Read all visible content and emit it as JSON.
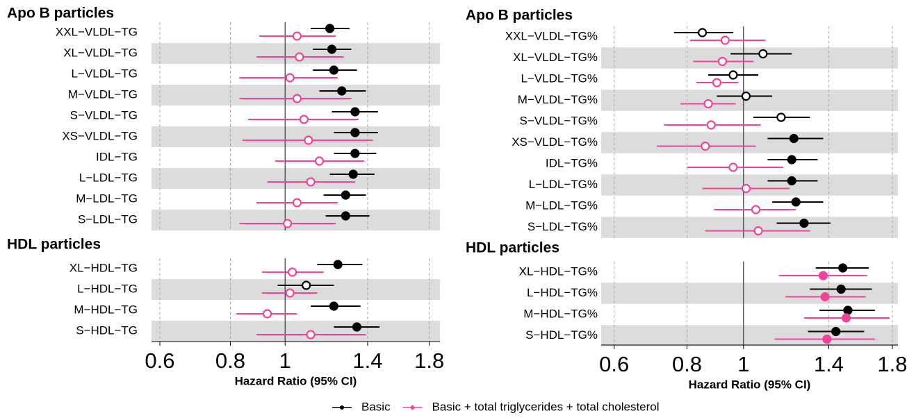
{
  "chart_data": [
    {
      "type": "forest",
      "xlabel": "Hazard Ratio (95% CI)",
      "log_x": true,
      "xlim": [
        0.58,
        1.88
      ],
      "xticks": [
        0.6,
        0.8,
        1,
        1.4,
        1.8
      ],
      "grid": true,
      "sections": [
        {
          "title": "Apo B particles",
          "categories": [
            "XXL−VLDL−TG",
            "XL−VLDL−TG",
            "L−VLDL−TG",
            "M−VLDL−TG",
            "S−VLDL−TG",
            "XS−VLDL−TG",
            "IDL−TG",
            "L−LDL−TG",
            "M−LDL−TG",
            "S−LDL−TG"
          ]
        },
        {
          "title": "HDL particles",
          "categories": [
            "XL−HDL−TG",
            "L−HDL−TG",
            "M−HDL−TG",
            "S−HDL−TG"
          ]
        }
      ],
      "series": [
        {
          "name": "Basic",
          "color": "#000000",
          "values": [
            1.2,
            1.21,
            1.22,
            1.26,
            1.33,
            1.33,
            1.33,
            1.32,
            1.28,
            1.28,
            1.24,
            1.09,
            1.22,
            1.34
          ],
          "lower": [
            1.11,
            1.12,
            1.12,
            1.15,
            1.21,
            1.22,
            1.22,
            1.2,
            1.17,
            1.18,
            1.14,
            0.97,
            1.11,
            1.22
          ],
          "upper": [
            1.3,
            1.31,
            1.34,
            1.39,
            1.46,
            1.46,
            1.45,
            1.44,
            1.39,
            1.41,
            1.37,
            1.22,
            1.36,
            1.47
          ],
          "filled": [
            true,
            true,
            true,
            true,
            true,
            true,
            true,
            true,
            true,
            true,
            true,
            false,
            true,
            true
          ]
        },
        {
          "name": "Basic + total triglycerides + total cholesterol",
          "color": "#f0439a",
          "values": [
            1.05,
            1.06,
            1.02,
            1.05,
            1.08,
            1.1,
            1.15,
            1.11,
            1.05,
            1.01,
            1.03,
            1.02,
            0.93,
            1.11
          ],
          "lower": [
            0.9,
            0.89,
            0.83,
            0.83,
            0.86,
            0.84,
            0.96,
            0.93,
            0.89,
            0.83,
            0.91,
            0.91,
            0.82,
            0.89
          ],
          "upper": [
            1.23,
            1.27,
            1.24,
            1.31,
            1.35,
            1.43,
            1.38,
            1.33,
            1.24,
            1.23,
            1.17,
            1.14,
            1.05,
            1.39
          ],
          "filled": [
            false,
            false,
            false,
            false,
            false,
            false,
            false,
            false,
            false,
            false,
            false,
            false,
            false,
            false
          ]
        }
      ]
    },
    {
      "type": "forest",
      "xlabel": "Hazard Ratio (95% CI)",
      "log_x": true,
      "xlim": [
        0.57,
        1.84
      ],
      "xticks": [
        0.6,
        0.8,
        1,
        1.4,
        1.8
      ],
      "grid": true,
      "sections": [
        {
          "title": "Apo B particles",
          "categories": [
            "XXL−VLDL−TG%",
            "XL−VLDL−TG%",
            "L−VLDL−TG%",
            "M−VLDL−TG%",
            "S−VLDL−TG%",
            "XS−VLDL−TG%",
            "IDL−TG%",
            "L−LDL−TG%",
            "M−LDL−TG%",
            "S−LDL−TG%"
          ]
        },
        {
          "title": "HDL particles",
          "categories": [
            "XL−HDL−TG%",
            "L−HDL−TG%",
            "M−HDL−TG%",
            "S−HDL−TG%"
          ]
        }
      ],
      "series": [
        {
          "color": "#000000",
          "values": [
            0.85,
            1.08,
            0.96,
            1.01,
            1.16,
            1.22,
            1.21,
            1.21,
            1.23,
            1.27,
            1.48,
            1.47,
            1.51,
            1.44
          ],
          "lower": [
            0.76,
            0.95,
            0.87,
            0.9,
            1.04,
            1.1,
            1.1,
            1.1,
            1.12,
            1.14,
            1.33,
            1.3,
            1.35,
            1.29
          ],
          "upper": [
            0.96,
            1.21,
            1.06,
            1.12,
            1.3,
            1.37,
            1.34,
            1.34,
            1.37,
            1.41,
            1.64,
            1.66,
            1.68,
            1.61
          ],
          "filled": [
            false,
            false,
            false,
            false,
            false,
            true,
            true,
            true,
            true,
            true,
            true,
            true,
            true,
            true
          ]
        },
        {
          "color": "#f0439a",
          "values": [
            0.93,
            0.92,
            0.9,
            0.87,
            0.88,
            0.86,
            0.96,
            1.01,
            1.05,
            1.06,
            1.37,
            1.38,
            1.5,
            1.39
          ],
          "lower": [
            0.81,
            0.82,
            0.83,
            0.78,
            0.73,
            0.71,
            0.8,
            0.85,
            0.89,
            0.86,
            1.15,
            1.18,
            1.27,
            1.13
          ],
          "upper": [
            1.09,
            1.04,
            0.98,
            0.97,
            1.07,
            1.05,
            1.17,
            1.2,
            1.23,
            1.3,
            1.63,
            1.62,
            1.78,
            1.68
          ],
          "filled": [
            false,
            false,
            false,
            false,
            false,
            false,
            false,
            false,
            false,
            false,
            true,
            true,
            true,
            true
          ]
        }
      ]
    }
  ]
}
